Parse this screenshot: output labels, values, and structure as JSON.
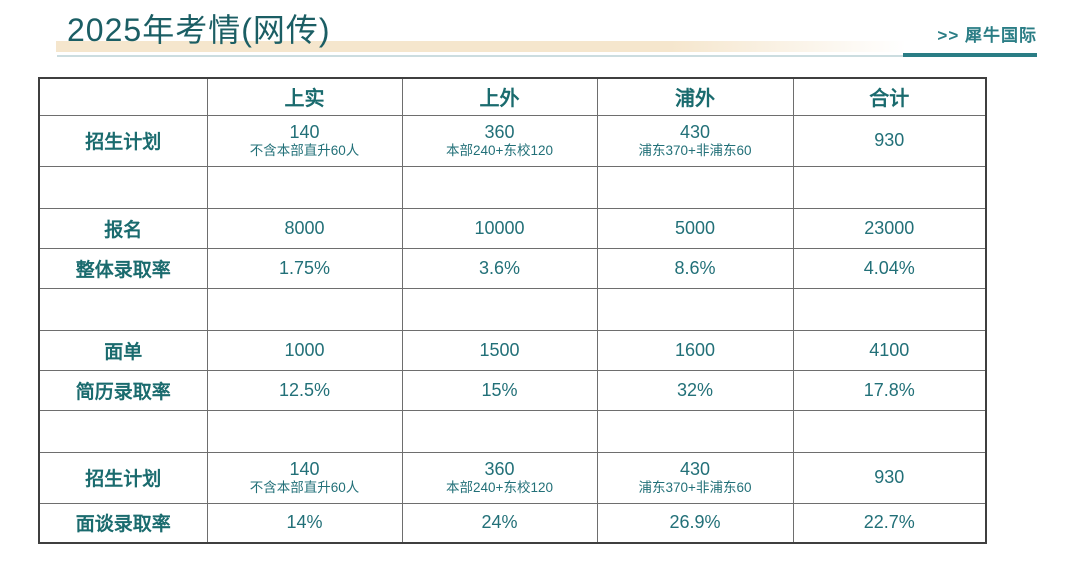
{
  "header": {
    "title": "2025年考情(网传)",
    "brand": ">> 犀牛国际",
    "title_color": "#1b5e64",
    "accent_color": "#2a7d85",
    "band_color": "#f5e6cd",
    "rule_color": "#ccdde0"
  },
  "table": {
    "label_color": "#1a6b6e",
    "value_color": "#227078",
    "border_color": "#6e6e6e",
    "columns": [
      "",
      "上实",
      "上外",
      "浦外",
      "合计"
    ],
    "rows": [
      {
        "kind": "two",
        "label": "招生计划",
        "cells": [
          {
            "v": "140",
            "sub": "不含本部直升60人"
          },
          {
            "v": "360",
            "sub": "本部240+东校120"
          },
          {
            "v": "430",
            "sub": "浦东370+非浦东60"
          },
          {
            "v": "930",
            "sub": ""
          }
        ]
      },
      {
        "kind": "empty",
        "label": "",
        "cells": [
          {
            "v": "",
            "sub": ""
          },
          {
            "v": "",
            "sub": ""
          },
          {
            "v": "",
            "sub": ""
          },
          {
            "v": "",
            "sub": ""
          }
        ]
      },
      {
        "kind": "std",
        "label": "报名",
        "cells": [
          {
            "v": "8000",
            "sub": ""
          },
          {
            "v": "10000",
            "sub": ""
          },
          {
            "v": "5000",
            "sub": ""
          },
          {
            "v": "23000",
            "sub": ""
          }
        ]
      },
      {
        "kind": "std",
        "label": "整体录取率",
        "cells": [
          {
            "v": "1.75%",
            "sub": ""
          },
          {
            "v": "3.6%",
            "sub": ""
          },
          {
            "v": "8.6%",
            "sub": ""
          },
          {
            "v": "4.04%",
            "sub": ""
          }
        ]
      },
      {
        "kind": "empty",
        "label": "",
        "cells": [
          {
            "v": "",
            "sub": ""
          },
          {
            "v": "",
            "sub": ""
          },
          {
            "v": "",
            "sub": ""
          },
          {
            "v": "",
            "sub": ""
          }
        ]
      },
      {
        "kind": "std",
        "label": "面单",
        "cells": [
          {
            "v": "1000",
            "sub": ""
          },
          {
            "v": "1500",
            "sub": ""
          },
          {
            "v": "1600",
            "sub": ""
          },
          {
            "v": "4100",
            "sub": ""
          }
        ]
      },
      {
        "kind": "std",
        "label": "简历录取率",
        "cells": [
          {
            "v": "12.5%",
            "sub": ""
          },
          {
            "v": "15%",
            "sub": ""
          },
          {
            "v": "32%",
            "sub": ""
          },
          {
            "v": "17.8%",
            "sub": ""
          }
        ]
      },
      {
        "kind": "empty",
        "label": "",
        "cells": [
          {
            "v": "",
            "sub": ""
          },
          {
            "v": "",
            "sub": ""
          },
          {
            "v": "",
            "sub": ""
          },
          {
            "v": "",
            "sub": ""
          }
        ]
      },
      {
        "kind": "two",
        "label": "招生计划",
        "cells": [
          {
            "v": "140",
            "sub": "不含本部直升60人"
          },
          {
            "v": "360",
            "sub": "本部240+东校120"
          },
          {
            "v": "430",
            "sub": "浦东370+非浦东60"
          },
          {
            "v": "930",
            "sub": ""
          }
        ]
      },
      {
        "kind": "std",
        "label": "面谈录取率",
        "cells": [
          {
            "v": "14%",
            "sub": ""
          },
          {
            "v": "24%",
            "sub": ""
          },
          {
            "v": "26.9%",
            "sub": ""
          },
          {
            "v": "22.7%",
            "sub": ""
          }
        ]
      }
    ]
  }
}
